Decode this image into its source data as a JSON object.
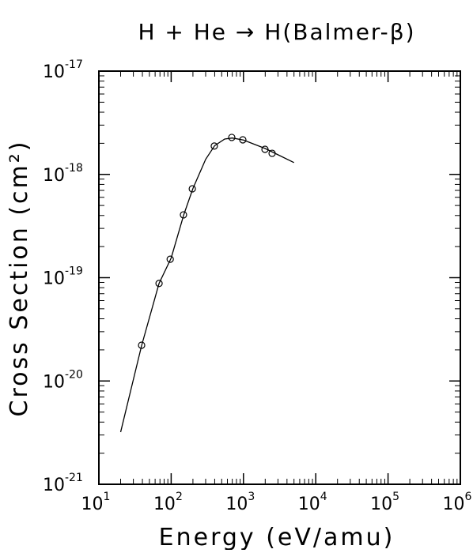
{
  "chart_data": {
    "type": "scatter",
    "title": "H + He → H(Balmer-β)",
    "x_label": "Energy (eV/amu)",
    "y_label": "Cross Section (cm²)",
    "log_x": true,
    "log_y": true,
    "xlim": [
      10,
      1000000
    ],
    "ylim": [
      1e-21,
      1e-17
    ],
    "xticks": [
      {
        "value": 10,
        "label": "10",
        "exponent": "1"
      },
      {
        "value": 100,
        "label": "10",
        "exponent": "2"
      },
      {
        "value": 1000,
        "label": "10",
        "exponent": "3"
      },
      {
        "value": 10000,
        "label": "10",
        "exponent": "4"
      },
      {
        "value": 100000,
        "label": "10",
        "exponent": "5"
      },
      {
        "value": 1000000,
        "label": "10",
        "exponent": "6"
      }
    ],
    "yticks": [
      {
        "value": 1e-21,
        "label": "10",
        "exponent": "-21"
      },
      {
        "value": 1e-20,
        "label": "10",
        "exponent": "-20"
      },
      {
        "value": 1e-19,
        "label": "10",
        "exponent": "-19"
      },
      {
        "value": 1e-18,
        "label": "10",
        "exponent": "-18"
      },
      {
        "value": 1e-17,
        "label": "10",
        "exponent": "-17"
      }
    ],
    "series": [
      {
        "kind": "points",
        "color": "#000000",
        "x": [
          39,
          68,
          97,
          148,
          196,
          395,
          689,
          980,
          1985,
          2490
        ],
        "values": [
          2.22e-20,
          8.8e-20,
          1.51e-19,
          4.06e-19,
          7.25e-19,
          1.88e-18,
          2.28e-18,
          2.16e-18,
          1.75e-18,
          1.6e-18
        ]
      },
      {
        "kind": "line",
        "color": "#000000",
        "x": [
          20,
          39,
          68,
          100,
          150,
          200,
          300,
          400,
          550,
          700,
          1000,
          2000,
          3000,
          5000
        ],
        "values": [
          3.2e-21,
          2.2e-20,
          8.8e-20,
          1.55e-19,
          4.1e-19,
          7.3e-19,
          1.4e-18,
          1.9e-18,
          2.2e-18,
          2.25e-18,
          2.15e-18,
          1.78e-18,
          1.55e-18,
          1.3e-18
        ]
      }
    ]
  }
}
